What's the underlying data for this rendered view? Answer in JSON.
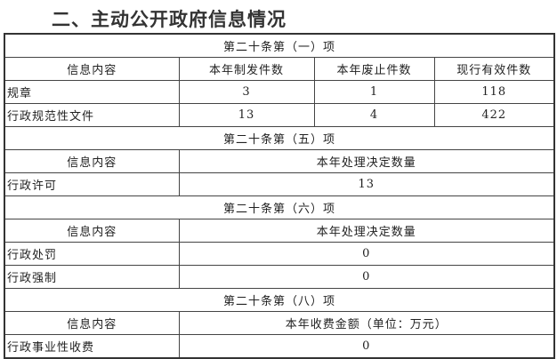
{
  "title": "二、主动公开政府信息情况",
  "sec1": {
    "heading": "第二十条第（一）项",
    "headers": [
      "信息内容",
      "本年制发件数",
      "本年废止件数",
      "现行有效件数"
    ],
    "rows": [
      [
        "规章",
        "3",
        "1",
        "118"
      ],
      [
        "行政规范性文件",
        "13",
        "4",
        "422"
      ]
    ]
  },
  "sec5": {
    "heading": "第二十条第（五）项",
    "headers": [
      "信息内容",
      "本年处理决定数量"
    ],
    "rows": [
      [
        "行政许可",
        "13"
      ]
    ]
  },
  "sec6": {
    "heading": "第二十条第（六）项",
    "headers": [
      "信息内容",
      "本年处理决定数量"
    ],
    "rows": [
      [
        "行政处罚",
        "0"
      ],
      [
        "行政强制",
        "0"
      ]
    ]
  },
  "sec8": {
    "heading": "第二十条第（八）项",
    "headers": [
      "信息内容",
      "本年收费金额（单位：万元）"
    ],
    "rows": [
      [
        "行政事业性收费",
        "0"
      ]
    ]
  }
}
